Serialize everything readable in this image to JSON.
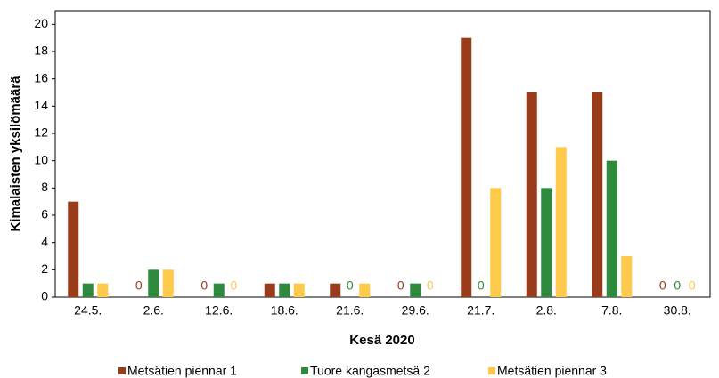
{
  "chart_data": {
    "type": "bar",
    "x_label": "Kesä 2020",
    "y_label": "Kimalaisten yksilömäärä",
    "categories": [
      "24.5.",
      "2.6.",
      "12.6.",
      "18.6.",
      "21.6.",
      "29.6.",
      "21.7.",
      "2.8.",
      "7.8.",
      "30.8."
    ],
    "series": [
      {
        "name": "Metsätien piennar 1",
        "color": "#983c1c",
        "values": [
          7,
          0,
          0,
          1,
          1,
          0,
          19,
          15,
          15,
          0
        ]
      },
      {
        "name": "Tuore kangasmetsä 2",
        "color": "#2e8b3e",
        "values": [
          1,
          2,
          1,
          1,
          0,
          1,
          0,
          8,
          10,
          0
        ]
      },
      {
        "name": "Metsätien piennar 3",
        "color": "#ffc94a",
        "values": [
          1,
          2,
          0,
          1,
          1,
          0,
          8,
          11,
          3,
          0
        ]
      }
    ],
    "ylim": [
      0,
      21
    ],
    "yticks": [
      0,
      2,
      4,
      6,
      8,
      10,
      12,
      14,
      16,
      18,
      20
    ],
    "grid": false,
    "legend": "bottom"
  }
}
